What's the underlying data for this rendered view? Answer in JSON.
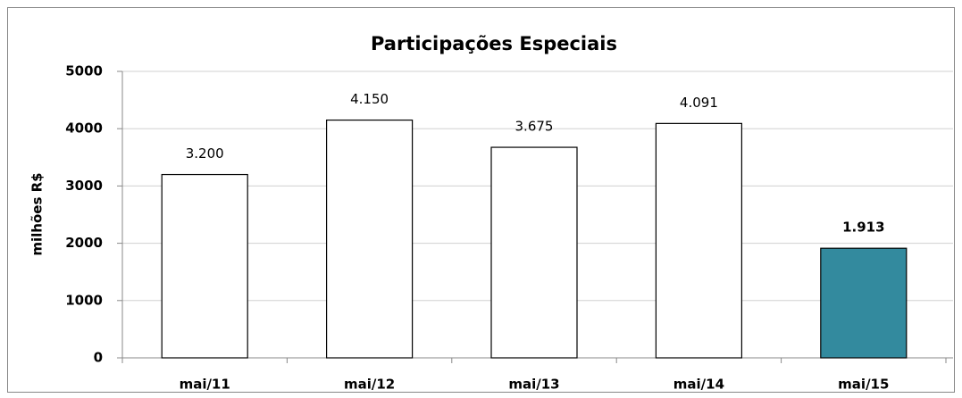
{
  "chart_data": {
    "type": "bar",
    "title": "Participações Especiais",
    "ylabel": "milhões R$",
    "categories": [
      "mai/11",
      "mai/12",
      "mai/13",
      "mai/14",
      "mai/15"
    ],
    "values": [
      3200,
      4150,
      3675,
      4091,
      1913
    ],
    "value_labels": [
      "3.200",
      "4.150",
      "3.675",
      "4.091",
      "1.913"
    ],
    "colors": [
      "#ffffff",
      "#ffffff",
      "#ffffff",
      "#ffffff",
      "#338a9e"
    ],
    "bold_labels": [
      false,
      false,
      false,
      false,
      true
    ],
    "ylim": [
      0,
      5000
    ],
    "yticks": [
      0,
      1000,
      2000,
      3000,
      4000,
      5000
    ],
    "grid": true
  }
}
